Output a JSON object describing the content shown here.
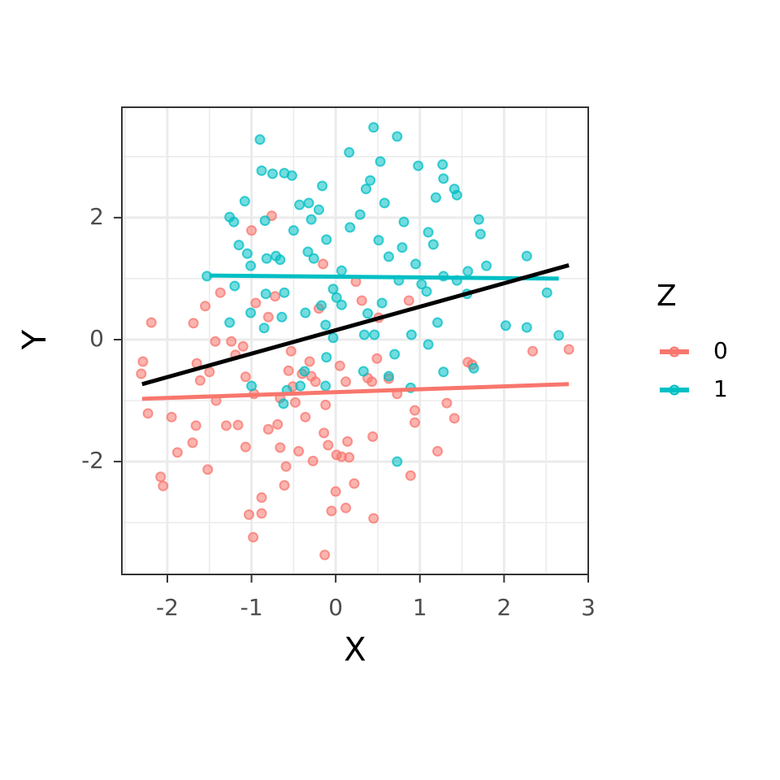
{
  "chart_data": {
    "type": "scatter",
    "x_label": "X",
    "y_label": "Y",
    "legend_title": "Z",
    "xlim": [
      -2.54,
      3.0
    ],
    "ylim": [
      -3.85,
      3.81
    ],
    "xticks": [
      -2,
      -1,
      0,
      1,
      2,
      3
    ],
    "yticks": [
      -2,
      0,
      2
    ],
    "xminorticks": [
      -2.5,
      -1.5,
      -0.5,
      0.5,
      1.5,
      2.5
    ],
    "yminorticks": [
      -3,
      -1,
      1,
      3
    ],
    "grid": true,
    "legend_position": "right",
    "series": [
      {
        "name": "0",
        "color": "#F8766D",
        "x": [
          -2.29,
          -2.31,
          -2.19,
          -2.23,
          -1.95,
          -1.88,
          -2.08,
          -2.05,
          -1.69,
          -1.65,
          -1.7,
          -1.66,
          -1.61,
          -1.55,
          -1.52,
          -1.5,
          -1.43,
          -1.42,
          -1.37,
          -1.3,
          -1.24,
          -1.16,
          -1.1,
          -1.07,
          -1.07,
          -1.03,
          -0.98,
          -1.0,
          -0.95,
          -0.97,
          -0.88,
          -0.88,
          -0.8,
          -0.76,
          -0.8,
          -0.72,
          -0.69,
          -0.66,
          -0.61,
          -0.59,
          -0.56,
          -0.53,
          -0.51,
          -0.44,
          -0.4,
          -0.36,
          -0.31,
          -0.27,
          -0.24,
          -0.2,
          -0.15,
          -0.14,
          -0.13,
          -0.12,
          -0.09,
          -0.05,
          0.0,
          0.01,
          0.05,
          0.07,
          0.12,
          0.14,
          0.16,
          0.22,
          0.24,
          0.31,
          0.38,
          0.43,
          0.44,
          0.45,
          0.49,
          0.51,
          0.63,
          0.73,
          0.87,
          0.89,
          0.94,
          0.94,
          1.21,
          1.32,
          1.41,
          1.57,
          1.62,
          2.34,
          2.77,
          -1.19,
          -0.66,
          -0.48,
          -0.29,
          0.12
        ],
        "values": [
          -0.36,
          -0.56,
          0.28,
          -1.21,
          -1.27,
          -1.85,
          -2.25,
          -2.4,
          0.27,
          -0.39,
          -1.69,
          -1.41,
          -0.67,
          0.55,
          -2.13,
          -0.53,
          -0.03,
          -1.0,
          0.77,
          -1.41,
          -0.03,
          -1.4,
          -0.11,
          -0.61,
          -1.76,
          -2.87,
          -3.24,
          1.79,
          0.6,
          -0.89,
          -2.59,
          -2.85,
          0.37,
          2.03,
          -1.47,
          0.71,
          -1.39,
          -1.77,
          -2.39,
          -2.08,
          -0.51,
          -0.19,
          -0.77,
          -1.83,
          -0.56,
          -1.27,
          -0.36,
          -1.99,
          -0.69,
          0.51,
          1.24,
          -1.53,
          -3.53,
          -1.07,
          -1.73,
          -2.81,
          -2.49,
          -1.89,
          -0.43,
          -1.92,
          -2.76,
          -1.67,
          -1.93,
          -2.36,
          0.95,
          0.64,
          -0.63,
          -0.69,
          -1.59,
          -2.93,
          -0.31,
          0.36,
          -0.64,
          -0.89,
          0.64,
          -2.23,
          -1.16,
          -1.36,
          -1.83,
          -1.04,
          -1.29,
          -0.37,
          -0.41,
          -0.19,
          -0.16,
          -0.25,
          -0.96,
          -1.03,
          -0.6,
          -0.69
        ],
        "fit": {
          "x": [
            -2.3,
            2.77
          ],
          "values": [
            -0.97,
            -0.73
          ]
        }
      },
      {
        "name": "1",
        "color": "#00BFC4",
        "x": [
          -0.9,
          -0.88,
          -0.75,
          -0.61,
          -0.52,
          -1.08,
          -1.26,
          -1.21,
          -1.15,
          -1.05,
          -1.01,
          -1.2,
          -1.53,
          -0.82,
          -0.84,
          -0.71,
          -0.66,
          -0.5,
          -0.43,
          -0.29,
          -0.2,
          -0.16,
          -0.11,
          -0.33,
          -0.26,
          -0.61,
          -0.83,
          -0.64,
          -1.01,
          -1.26,
          -0.85,
          -0.36,
          -0.17,
          -0.12,
          -0.03,
          -0.03,
          0.01,
          0.07,
          0.16,
          0.17,
          0.29,
          0.36,
          0.41,
          0.45,
          0.53,
          0.58,
          0.51,
          0.63,
          0.73,
          0.81,
          0.79,
          0.98,
          1.1,
          1.16,
          1.19,
          1.27,
          1.28,
          1.41,
          1.44,
          1.7,
          1.72,
          1.79,
          1.57,
          1.44,
          1.56,
          2.27,
          2.51,
          2.02,
          2.27,
          2.65,
          1.21,
          1.1,
          0.9,
          1.28,
          1.64,
          0.89,
          0.73,
          0.63,
          0.7,
          0.33,
          0.46,
          0.34,
          0.38,
          0.55,
          0.75,
          0.95,
          1.02,
          1.08,
          1.28,
          0.07,
          -0.11,
          -0.12,
          -0.42,
          -0.58,
          -0.62,
          -0.37,
          -1.0,
          -0.32
        ],
        "values": [
          3.28,
          2.77,
          2.72,
          2.73,
          2.69,
          2.27,
          2.01,
          1.93,
          1.55,
          1.41,
          1.21,
          0.88,
          1.04,
          1.33,
          1.95,
          1.37,
          1.31,
          1.79,
          2.21,
          1.97,
          2.13,
          2.52,
          1.64,
          1.44,
          1.33,
          0.77,
          0.75,
          0.37,
          0.44,
          0.28,
          0.19,
          0.44,
          0.56,
          0.24,
          0.03,
          0.83,
          0.69,
          1.13,
          3.07,
          1.84,
          2.05,
          2.47,
          2.61,
          3.48,
          2.92,
          2.24,
          1.63,
          1.36,
          3.33,
          1.93,
          1.51,
          2.85,
          1.76,
          1.56,
          2.33,
          2.87,
          2.64,
          2.47,
          2.37,
          1.97,
          1.73,
          1.21,
          1.12,
          0.97,
          0.75,
          1.37,
          0.77,
          0.23,
          0.2,
          0.07,
          0.28,
          -0.08,
          0.08,
          -0.53,
          -0.47,
          -0.79,
          -2.0,
          -0.6,
          -0.24,
          -0.52,
          0.08,
          0.08,
          0.43,
          0.6,
          0.97,
          1.24,
          0.91,
          0.79,
          1.04,
          0.57,
          -0.29,
          -0.76,
          -0.76,
          -0.83,
          -1.05,
          -0.52,
          -0.76,
          2.24
        ],
        "fit": {
          "x": [
            -1.5,
            2.65
          ],
          "values": [
            1.05,
            1.0
          ]
        }
      }
    ],
    "overall_fit": {
      "color": "#000000",
      "x": [
        -2.3,
        2.77
      ],
      "values": [
        -0.73,
        1.22
      ]
    }
  }
}
